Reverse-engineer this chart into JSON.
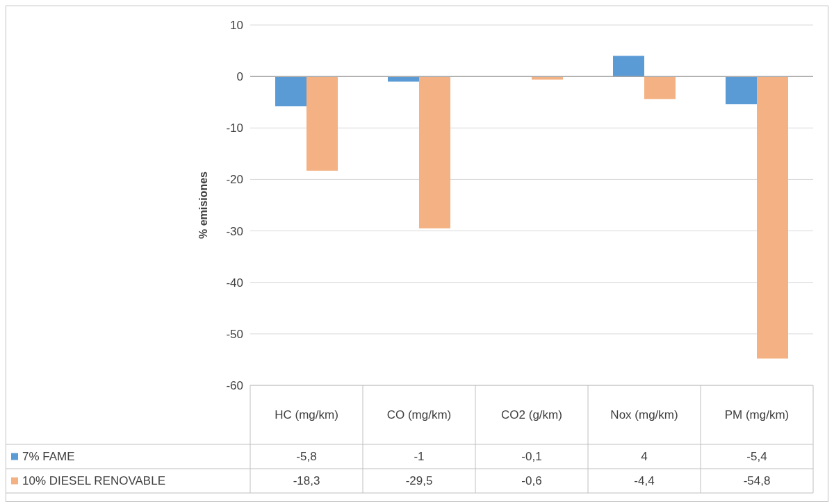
{
  "chart_data": {
    "type": "bar",
    "ylabel": "% emisiones",
    "categories": [
      "HC (mg/km)",
      "CO (mg/km)",
      "CO2 (g/km)",
      "Nox (mg/km)",
      "PM (mg/km)"
    ],
    "series": [
      {
        "name": "7% FAME",
        "color": "#5b9bd5",
        "values": [
          -5.8,
          -1,
          -0.1,
          4,
          -5.4
        ],
        "value_labels": [
          "-5,8",
          "-1",
          "-0,1",
          "4",
          "-5,4"
        ]
      },
      {
        "name": "10% DIESEL RENOVABLE",
        "color": "#f4b183",
        "values": [
          -18.3,
          -29.5,
          -0.6,
          -4.4,
          -54.8
        ],
        "value_labels": [
          "-18,3",
          "-29,5",
          "-0,6",
          "-4,4",
          "-54,8"
        ]
      }
    ],
    "ylim": [
      -60,
      10
    ],
    "yticks": [
      -60,
      -50,
      -40,
      -30,
      -20,
      -10,
      0,
      10
    ],
    "grid": "y",
    "legend": "bottom"
  }
}
